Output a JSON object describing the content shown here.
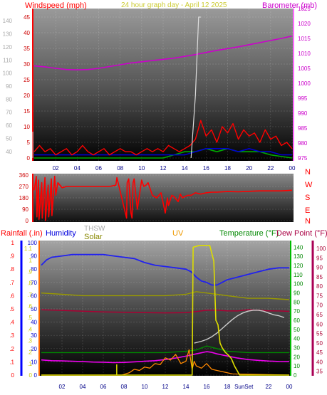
{
  "header": {
    "windspeed_label": "Windspeed (mph)",
    "title": "24 hour graph day - April 12 2025",
    "barometer_label": "Barometer (mb)"
  },
  "bottom_header": {
    "rainfall_label": "Rainfall (.in)",
    "humidity_label": "Humidity",
    "thsw_label": "THSW",
    "solar_label": "Solar",
    "uv_label": "UV",
    "temperature_label": "Temperature (°F)",
    "dewpoint_label": "Dew Point (°F)",
    "sunset_label": "SunSet"
  },
  "colors": {
    "wind": "#ff0000",
    "wind_avg": "#0000cc",
    "wind_low": "#00aa00",
    "barometer": "#cc00cc",
    "direction": "#ff0000",
    "humidity": "#2222ee",
    "temperature": "#ee00ee",
    "dewpoint": "#aa0033",
    "thsw": "#cccccc",
    "solar": "#dddd00",
    "uv": "#eebb00",
    "rain": "#0000ff",
    "lowlevel_green": "#008800",
    "olive": "#999900"
  },
  "chart_data": [
    {
      "type": "line",
      "name": "wind_barometer",
      "xlabel": "",
      "x_ticks": [
        "02",
        "04",
        "06",
        "08",
        "10",
        "12",
        "14",
        "16",
        "18",
        "20",
        "22",
        "00"
      ],
      "x_range": [
        0,
        24
      ],
      "grid": true,
      "left_axis": {
        "label": "Windspeed (mph)",
        "ticks": [
          0,
          5,
          10,
          15,
          20,
          25,
          30,
          35,
          40,
          45
        ],
        "range": [
          0,
          45
        ]
      },
      "right_axis": {
        "label": "Barometer (mb)",
        "ticks": [
          975,
          980,
          985,
          990,
          995,
          1000,
          1005,
          1010,
          1015,
          1020,
          1025
        ],
        "range": [
          975,
          1025
        ]
      },
      "outer_left_scale": {
        "ticks": [
          40,
          50,
          60,
          70,
          80,
          90,
          100,
          110,
          120,
          130,
          140
        ],
        "range": [
          35,
          145
        ]
      },
      "barometer": {
        "x": [
          0,
          1,
          2,
          3,
          4,
          5,
          6,
          7,
          8,
          9,
          10,
          11,
          12,
          13,
          14,
          15,
          16,
          17,
          18,
          19,
          20,
          21,
          22,
          23,
          24
        ],
        "y": [
          1005.8,
          1005.5,
          1005.0,
          1004.6,
          1004.5,
          1004.6,
          1005.0,
          1005.6,
          1006.2,
          1006.8,
          1007.2,
          1007.6,
          1008.0,
          1008.4,
          1009.0,
          1009.6,
          1010.3,
          1011.0,
          1011.6,
          1012.2,
          1012.9,
          1013.6,
          1014.3,
          1015.0,
          1015.8
        ]
      },
      "wind_speed": {
        "x": [
          0,
          0.5,
          1,
          1.5,
          2,
          2.5,
          3,
          3.5,
          4,
          4.5,
          5,
          5.5,
          6,
          6.5,
          7,
          7.5,
          8,
          8.5,
          9,
          9.5,
          10,
          10.5,
          11,
          11.5,
          12,
          12.5,
          13,
          13.5,
          14,
          14.5,
          15,
          15.5,
          16,
          16.5,
          17,
          17.5,
          18,
          18.5,
          19,
          19.5,
          20,
          20.5,
          21,
          21.5,
          22,
          22.5,
          23,
          23.5,
          24
        ],
        "y": [
          2,
          4,
          2,
          3,
          1,
          2,
          3,
          1,
          2,
          4,
          2,
          1,
          2,
          3,
          1,
          2,
          3,
          2,
          2,
          1,
          2,
          3,
          2,
          3,
          2,
          4,
          3,
          2,
          3,
          4,
          6,
          12,
          7,
          9,
          5,
          10,
          8,
          11,
          6,
          9,
          7,
          8,
          5,
          9,
          6,
          7,
          4,
          5,
          3
        ]
      },
      "wind_avg": {
        "x": [
          0,
          2,
          4,
          6,
          8,
          10,
          12,
          14,
          15,
          16,
          17,
          18,
          19,
          20,
          21,
          22,
          23,
          24
        ],
        "y": [
          1,
          1,
          1,
          1,
          1,
          1,
          1,
          1,
          2,
          3,
          3,
          3,
          2,
          3,
          2,
          2,
          1,
          1
        ]
      },
      "wind_low": {
        "x": [
          0,
          6,
          12,
          13,
          14,
          15,
          16,
          17,
          18,
          19,
          20,
          21,
          22,
          24
        ],
        "y": [
          0,
          0,
          0,
          1,
          2,
          2,
          3,
          2,
          3,
          2,
          2,
          2,
          1,
          0
        ]
      },
      "gust_spike": {
        "x": [
          14.6,
          15.0,
          15.3,
          15.5
        ],
        "y": [
          0,
          20,
          45,
          45
        ]
      }
    },
    {
      "type": "line",
      "name": "wind_direction",
      "y_ticks": [
        0,
        90,
        180,
        270,
        360
      ],
      "y_range": [
        0,
        360
      ],
      "compass_labels": [
        "N",
        "W",
        "S",
        "E",
        "N"
      ],
      "direction": {
        "x": [
          0,
          0.2,
          0.25,
          0.4,
          0.45,
          0.7,
          0.75,
          1.0,
          1.05,
          1.3,
          1.35,
          1.6,
          1.65,
          1.9,
          2.0,
          2.2,
          2.6,
          3.0,
          4,
          5,
          6,
          7,
          7.6,
          7.7,
          8.6,
          8.65,
          8.8,
          9.0,
          9.1,
          9.2,
          9.3,
          9.6,
          10.0,
          10.2,
          10.4,
          10.6,
          10.8,
          11.0,
          11.4,
          11.8,
          12.2,
          12.4,
          12.5,
          12.8,
          13.0,
          13.4,
          13.6,
          13.8,
          14.0,
          14.3,
          14.6,
          15.0,
          15.5,
          16,
          16.5,
          17,
          18,
          19,
          20,
          21,
          22,
          23,
          24
        ],
        "y": [
          240,
          350,
          30,
          320,
          10,
          300,
          20,
          340,
          0,
          280,
          30,
          330,
          40,
          350,
          200,
          300,
          260,
          270,
          270,
          270,
          270,
          270,
          280,
          340,
          20,
          300,
          330,
          60,
          20,
          300,
          330,
          90,
          320,
          270,
          280,
          300,
          250,
          200,
          180,
          220,
          60,
          180,
          120,
          200,
          190,
          150,
          210,
          180,
          190,
          200,
          200,
          220,
          210,
          220,
          225,
          225,
          230,
          228,
          232,
          235,
          235,
          235,
          240
        ]
      }
    },
    {
      "type": "line",
      "name": "rain_humidity_temp_uv",
      "x_ticks": [
        "02",
        "04",
        "06",
        "08",
        "10",
        "12",
        "14",
        "16",
        "18",
        "20",
        "22",
        "00"
      ],
      "x_range": [
        0,
        24
      ],
      "sunset_hour": 19.6,
      "rain_axis": {
        "label": "Rainfall (.in)",
        "ticks": [
          0,
          0.1,
          0.2,
          0.3,
          0.4,
          0.5,
          0.6,
          0.7,
          0.8,
          0.9,
          1
        ],
        "range": [
          0,
          1
        ]
      },
      "humidity_axis": {
        "ticks": [
          0,
          10,
          20,
          30,
          40,
          50,
          60,
          70,
          80,
          90,
          100
        ],
        "range": [
          0,
          100
        ]
      },
      "uv_axis": {
        "label": "UV",
        "ticks": [
          0,
          0.1,
          0.2,
          0.3,
          0.4,
          0.5,
          0.6,
          0.7,
          0.8,
          0.9,
          1,
          1.1
        ],
        "range": [
          0,
          1.15
        ]
      },
      "temperature_axis": {
        "label": "Temperature (°F)",
        "ticks": [
          35,
          40,
          45,
          50,
          55,
          60,
          65,
          70,
          75,
          80,
          85,
          90,
          95,
          100
        ],
        "range": [
          33,
          103
        ]
      },
      "far_right_axis": {
        "ticks": [
          0,
          10,
          20,
          30,
          40,
          50,
          60,
          70,
          80,
          90,
          100,
          110,
          120,
          130,
          140
        ],
        "range": [
          0,
          145
        ]
      },
      "humidity": {
        "x": [
          0,
          0.5,
          1,
          2,
          3,
          4,
          5,
          6,
          7,
          8,
          9,
          10,
          11,
          12,
          13,
          14,
          14.5,
          15,
          15.5,
          16,
          16.5,
          17,
          17.5,
          18,
          19,
          20,
          21,
          22,
          23,
          24
        ],
        "y": [
          83,
          87,
          89,
          90,
          91,
          91,
          91,
          91,
          90,
          89,
          88,
          85,
          83,
          82,
          81,
          80,
          78,
          74,
          71,
          70,
          68,
          68,
          70,
          72,
          74,
          76,
          78,
          80,
          81,
          81
        ]
      },
      "dewpoint": {
        "x": [
          0,
          2,
          4,
          6,
          8,
          10,
          12,
          14,
          15,
          16,
          17,
          18,
          19,
          20,
          21,
          22,
          23,
          24
        ],
        "y": [
          67.5,
          67.2,
          66.8,
          66.4,
          66.2,
          66.0,
          65.9,
          66.0,
          66.6,
          67.3,
          67.3,
          67.0,
          66.9,
          67.5,
          67.3,
          67.0,
          66.9,
          66.7
        ]
      },
      "temperature": {
        "x": [
          0,
          1,
          2,
          3,
          4,
          5,
          6,
          7,
          8,
          9,
          10,
          11,
          12,
          13,
          14,
          15,
          16,
          16.5,
          17,
          18,
          19,
          20,
          21,
          22,
          23,
          24
        ],
        "y": [
          41.0,
          40.6,
          40.5,
          40.3,
          40.1,
          39.9,
          39.8,
          39.6,
          39.7,
          40.0,
          40.3,
          40.6,
          41.2,
          42.0,
          43.0,
          44.2,
          45.4,
          45.0,
          44.2,
          43.1,
          42.0,
          41.2,
          40.8,
          40.4,
          40.2,
          40.1
        ]
      },
      "thsw": {
        "x": [
          14.8,
          15.5,
          16,
          16.5,
          17,
          17.5,
          18,
          18.5,
          19,
          19.5,
          20,
          20.5,
          21,
          21.5,
          22,
          22.5,
          23,
          23.5
        ],
        "y": [
          35,
          37,
          39,
          42,
          46,
          51,
          56,
          61,
          65,
          68,
          70,
          71,
          71,
          70,
          68,
          66,
          65,
          63
        ]
      },
      "solar": {
        "x": [
          0,
          14.6,
          14.7,
          15.3,
          16.3,
          16.7,
          16.9,
          17.1,
          17.3,
          17.5,
          17.8,
          18.1,
          18.4,
          18.7,
          19.2,
          24
        ],
        "y": [
          0,
          0,
          140,
          142,
          142,
          125,
          60,
          55,
          35,
          30,
          25,
          22,
          18,
          10,
          0,
          0
        ]
      },
      "uv": {
        "x": [
          0,
          7.8,
          8.5,
          9.0,
          9.5,
          10.0,
          10.5,
          11.0,
          11.5,
          12.0,
          12.5,
          13.0,
          13.5,
          14.0,
          14.3,
          14.6,
          14.8,
          15.0,
          15.5,
          16.0,
          16.5,
          17.0,
          17.5,
          18.0,
          18.5,
          24
        ],
        "y": [
          0,
          0,
          0.02,
          0.05,
          0.04,
          0.07,
          0.06,
          0.1,
          0.09,
          0.15,
          0.13,
          0.18,
          0.1,
          0.12,
          0.22,
          0.05,
          0.12,
          0.08,
          0.06,
          0.1,
          0.05,
          0.04,
          0.03,
          0.02,
          0.01,
          0
        ]
      },
      "low_level": {
        "x": [
          0,
          4,
          8,
          12,
          14,
          15,
          16,
          17,
          18,
          20,
          22,
          24
        ],
        "y": [
          17,
          17,
          17,
          17,
          18,
          19,
          22,
          20,
          18,
          17,
          17,
          17
        ]
      },
      "olive_line": {
        "x": [
          0,
          2,
          4,
          6,
          8,
          10,
          12,
          14,
          15,
          16,
          17,
          18,
          19,
          20,
          22,
          24
        ],
        "y": [
          62,
          61,
          60,
          60,
          60,
          60,
          60,
          61,
          63,
          62,
          61,
          60,
          59,
          58,
          58,
          57
        ]
      }
    }
  ]
}
